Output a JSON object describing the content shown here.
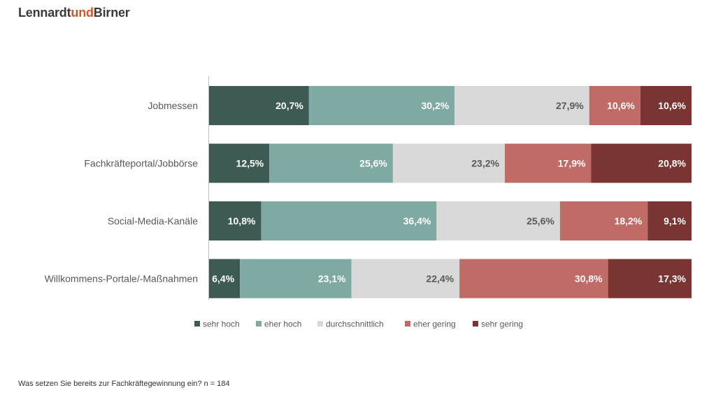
{
  "brand": {
    "part1": "Lennardt",
    "part2": "und",
    "part3": "Birner"
  },
  "footnote": "Was setzen Sie bereits zur Fachkräftegewinnung ein? n = 184",
  "chart_data": {
    "type": "bar",
    "orientation": "horizontal",
    "stacked": true,
    "percent_stacked": true,
    "categories": [
      "Jobmessen",
      "Fachkräfteportal/Jobbörse",
      "Social-Media-Kanäle",
      "Willkommens-Portale/-Maßnahmen"
    ],
    "series": [
      {
        "name": "sehr hoch",
        "color": "#3e5a55",
        "label_color": "#ffffff",
        "values": [
          20.7,
          12.5,
          10.8,
          6.4
        ],
        "labels": [
          "20,7%",
          "12,5%",
          "10,8%",
          "6,4%"
        ]
      },
      {
        "name": "eher hoch",
        "color": "#7eaaa3",
        "label_color": "#ffffff",
        "values": [
          30.2,
          25.6,
          36.4,
          23.1
        ],
        "labels": [
          "30,2%",
          "25,6%",
          "36,4%",
          "23,1%"
        ]
      },
      {
        "name": "durchschnittlich",
        "color": "#d9d9d9",
        "label_color": "#595959",
        "values": [
          27.9,
          23.2,
          25.6,
          22.4
        ],
        "labels": [
          "27,9%",
          "23,2%",
          "25,6%",
          "22,4%"
        ]
      },
      {
        "name": "eher gering",
        "color": "#c06b66",
        "label_color": "#ffffff",
        "values": [
          10.6,
          17.9,
          18.2,
          30.8
        ],
        "labels": [
          "10,6%",
          "17,9%",
          "18,2%",
          "30,8%"
        ]
      },
      {
        "name": "sehr gering",
        "color": "#7a3431",
        "label_color": "#ffffff",
        "values": [
          10.6,
          20.8,
          9.1,
          17.3
        ],
        "labels": [
          "10,6%",
          "20,8%",
          "9,1%",
          "17,3%"
        ]
      }
    ],
    "legend_position": "bottom",
    "grid": false
  }
}
